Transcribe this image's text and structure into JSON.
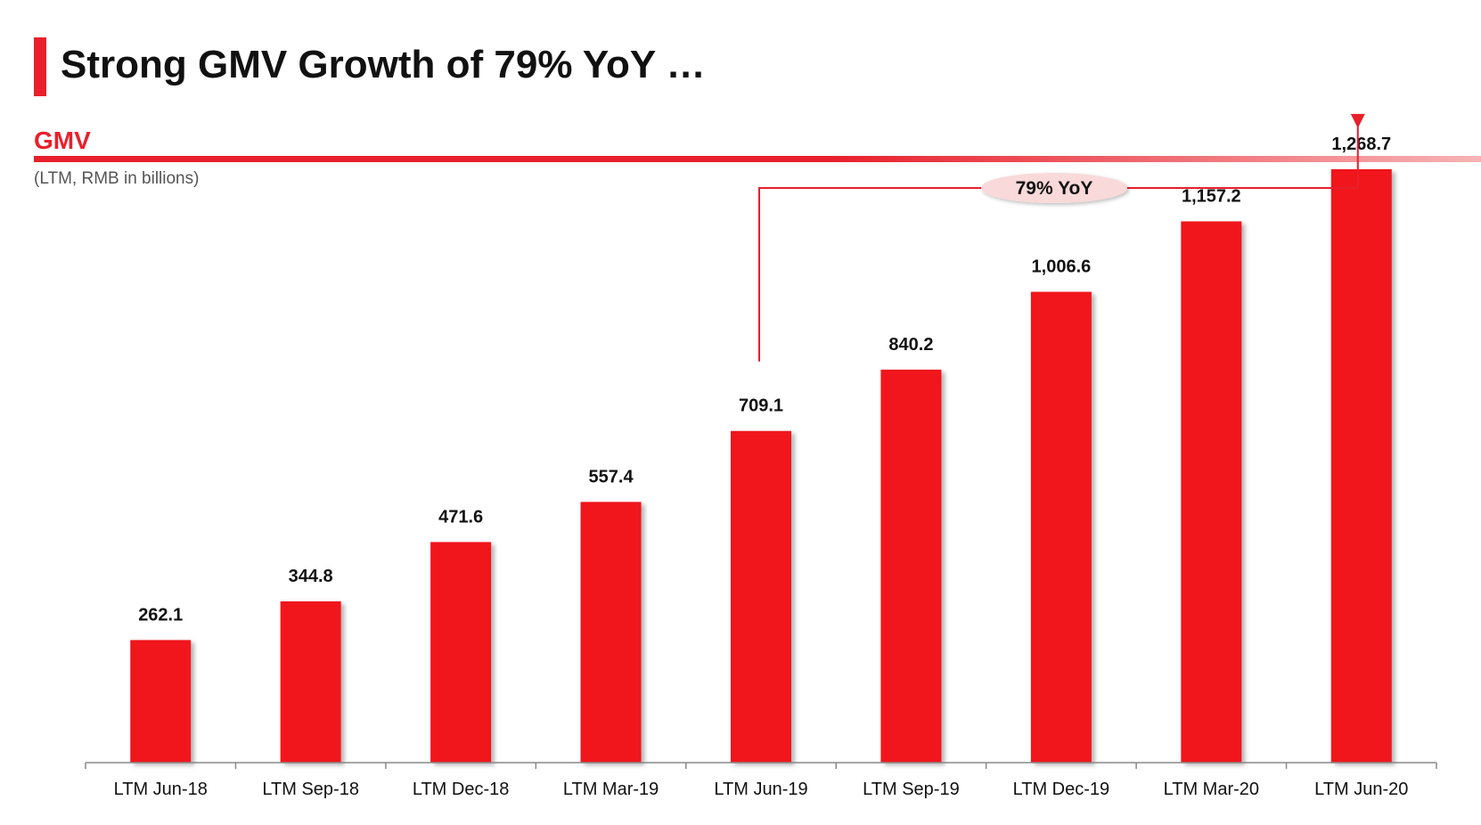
{
  "header": {
    "title": "Strong GMV Growth of 79% YoY …"
  },
  "section": {
    "label": "GMV",
    "subtitle": "(LTM, RMB in billions)"
  },
  "colors": {
    "accent": "#e8202b",
    "bar": "#f0141e",
    "callout_fill": "#f9d9da",
    "axis": "#888888"
  },
  "callout": {
    "text": "79% YoY",
    "from_category": "LTM Jun-19",
    "to_category": "LTM Jun-20"
  },
  "chart_data": {
    "type": "bar",
    "title": "GMV",
    "subtitle": "(LTM, RMB in billions)",
    "xlabel": "",
    "ylabel": "",
    "ylim": [
      0,
      1400
    ],
    "grid": false,
    "categories": [
      "LTM Jun-18",
      "LTM Sep-18",
      "LTM Dec-18",
      "LTM Mar-19",
      "LTM Jun-19",
      "LTM Sep-19",
      "LTM Dec-19",
      "LTM Mar-20",
      "LTM Jun-20"
    ],
    "values": [
      262.1,
      344.8,
      471.6,
      557.4,
      709.1,
      840.2,
      1006.6,
      1157.2,
      1268.7
    ],
    "data_labels": [
      "262.1",
      "344.8",
      "471.6",
      "557.4",
      "709.1",
      "840.2",
      "1,006.6",
      "1,157.2",
      "1,268.7"
    ]
  }
}
